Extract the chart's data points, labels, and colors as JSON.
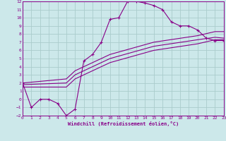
{
  "xlabel": "Windchill (Refroidissement éolien,°C)",
  "background_color": "#cce8ea",
  "grid_color": "#aacccc",
  "line_color": "#880088",
  "xlim": [
    0,
    23
  ],
  "ylim": [
    -2,
    12
  ],
  "xticks": [
    0,
    1,
    2,
    3,
    4,
    5,
    6,
    7,
    8,
    9,
    10,
    11,
    12,
    13,
    14,
    15,
    16,
    17,
    18,
    19,
    20,
    21,
    22,
    23
  ],
  "yticks": [
    -2,
    -1,
    0,
    1,
    2,
    3,
    4,
    5,
    6,
    7,
    8,
    9,
    10,
    11,
    12
  ],
  "curve1_x": [
    0,
    1,
    2,
    3,
    4,
    5,
    6,
    7,
    8,
    9,
    10,
    11,
    12,
    13,
    14,
    15,
    16,
    17,
    18,
    19,
    20,
    21,
    22,
    23
  ],
  "curve1_y": [
    2,
    -1,
    0,
    0,
    -0.5,
    -2,
    -1.2,
    4.7,
    5.5,
    7,
    9.8,
    10,
    12,
    12,
    11.8,
    11.5,
    11,
    9.5,
    9,
    9,
    8.5,
    7.5,
    7.2,
    7.2
  ],
  "curve2_x": [
    0,
    5,
    6,
    10,
    15,
    20,
    22,
    23
  ],
  "curve2_y": [
    1.5,
    1.5,
    2.5,
    4.5,
    6.0,
    6.8,
    7.3,
    7.3
  ],
  "curve3_x": [
    0,
    5,
    6,
    10,
    15,
    20,
    22,
    23
  ],
  "curve3_y": [
    1.8,
    2.0,
    3.0,
    5.0,
    6.5,
    7.3,
    7.6,
    7.5
  ],
  "curve4_x": [
    0,
    5,
    6,
    10,
    15,
    20,
    22,
    23
  ],
  "curve4_y": [
    2.0,
    2.5,
    3.5,
    5.5,
    7.0,
    7.8,
    8.3,
    8.3
  ]
}
